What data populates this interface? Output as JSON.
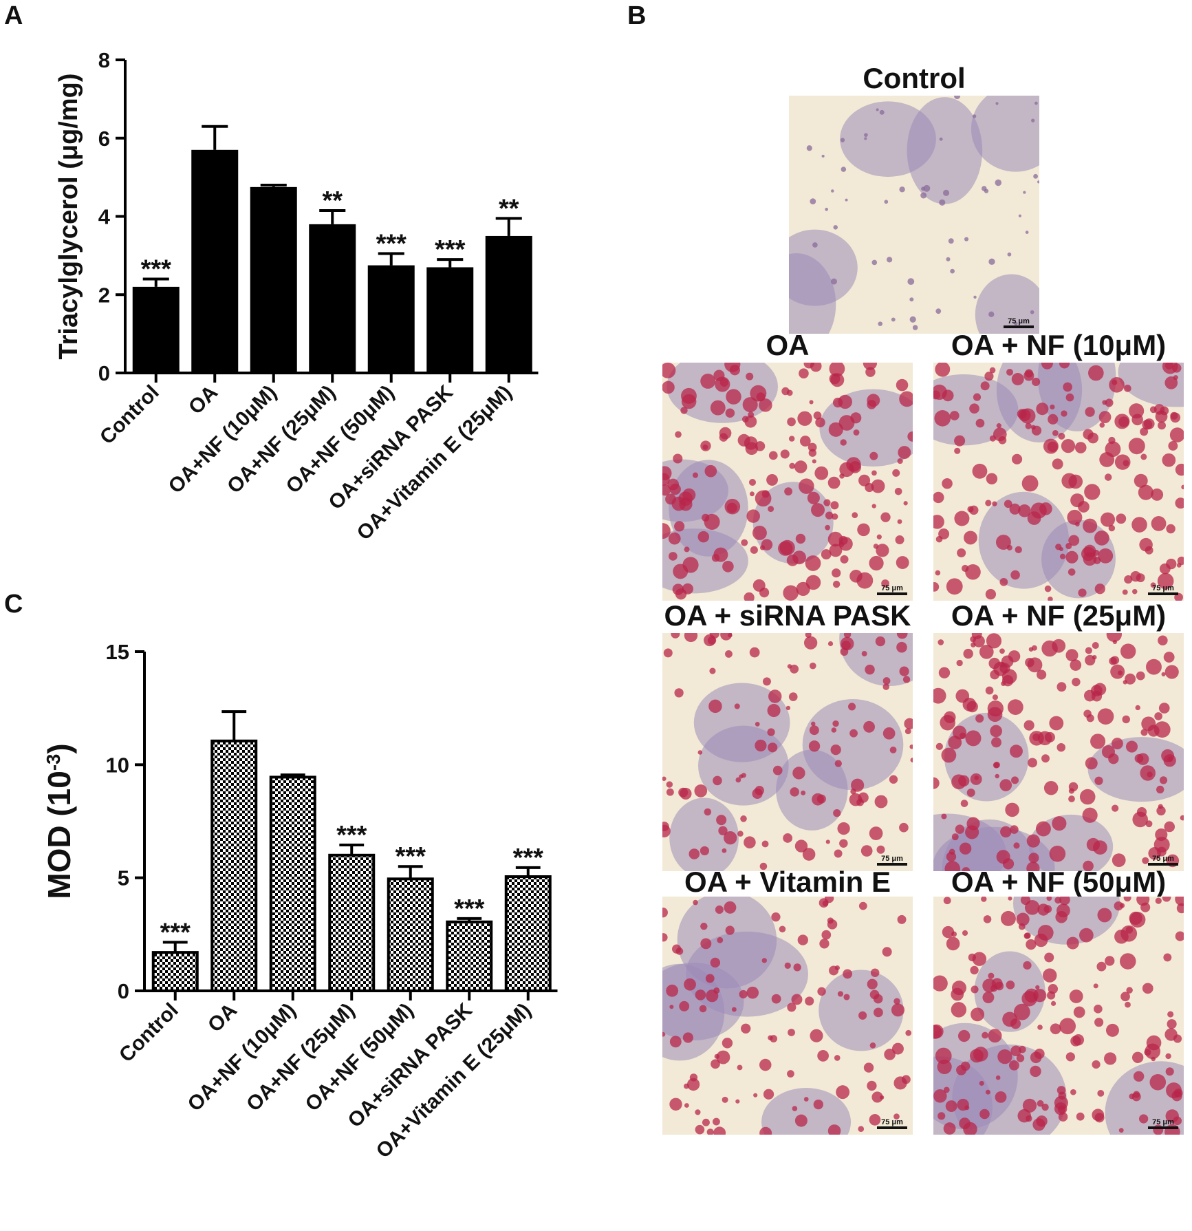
{
  "panels": {
    "a": "A",
    "b": "B",
    "c": "C"
  },
  "chart_data": [
    {
      "id": "A",
      "type": "bar",
      "ylabel": "Triacylglycerol (μg/mg)",
      "xlabel": "",
      "ylim": [
        0,
        8
      ],
      "yticks": [
        0,
        2,
        4,
        6,
        8
      ],
      "categories": [
        "Control",
        "OA",
        "OA+NF (10μM)",
        "OA+NF (25μM)",
        "OA+NF (50μM)",
        "OA+siRNA PASK",
        "OA+Vitamin E (25μM)"
      ],
      "values": [
        2.2,
        5.7,
        4.75,
        3.8,
        2.75,
        2.7,
        3.5
      ],
      "errors": [
        0.2,
        0.6,
        0.05,
        0.35,
        0.3,
        0.2,
        0.45
      ],
      "significance": [
        "***",
        "",
        "",
        "**",
        "***",
        "***",
        "**"
      ],
      "fill": "solid",
      "color": "#000000"
    },
    {
      "id": "C",
      "type": "bar",
      "ylabel": "MOD (10",
      "ylabel_sup": "-3",
      "ylabel_end": ")",
      "xlabel": "",
      "ylim": [
        0,
        15
      ],
      "yticks": [
        0,
        5,
        10,
        15
      ],
      "categories": [
        "Control",
        "OA",
        "OA+NF (10μM)",
        "OA+NF (25μM)",
        "OA+NF (50μM)",
        "OA+siRNA PASK",
        "OA+Vitamin E (25μM)"
      ],
      "values": [
        1.7,
        11.05,
        9.45,
        6.0,
        4.95,
        3.05,
        5.05
      ],
      "errors": [
        0.45,
        1.3,
        0.1,
        0.45,
        0.55,
        0.15,
        0.4
      ],
      "significance": [
        "***",
        "",
        "",
        "***",
        "***",
        "***",
        "***"
      ],
      "fill": "checkered",
      "color": "#000000"
    }
  ],
  "micrographs": [
    {
      "title": "Control",
      "scale": "75 μm",
      "density": "low"
    },
    {
      "title": "OA",
      "scale": "75 μm",
      "density": "high"
    },
    {
      "title": "OA + NF (10μM)",
      "scale": "75 μm",
      "density": "high"
    },
    {
      "title": "OA + siRNA PASK",
      "scale": "75 μm",
      "density": "mid"
    },
    {
      "title": "OA + NF (25μM)",
      "scale": "75 μm",
      "density": "high"
    },
    {
      "title": "OA + Vitamin E",
      "scale": "75 μm",
      "density": "mid"
    },
    {
      "title": "OA + NF (50μM)",
      "scale": "75 μm",
      "density": "high"
    }
  ],
  "colors": {
    "bar": "#000000",
    "background": "#ffffff",
    "cell": "#9c8ab8",
    "droplet": "#b8264a",
    "stain_bg": "#f2ead6"
  }
}
